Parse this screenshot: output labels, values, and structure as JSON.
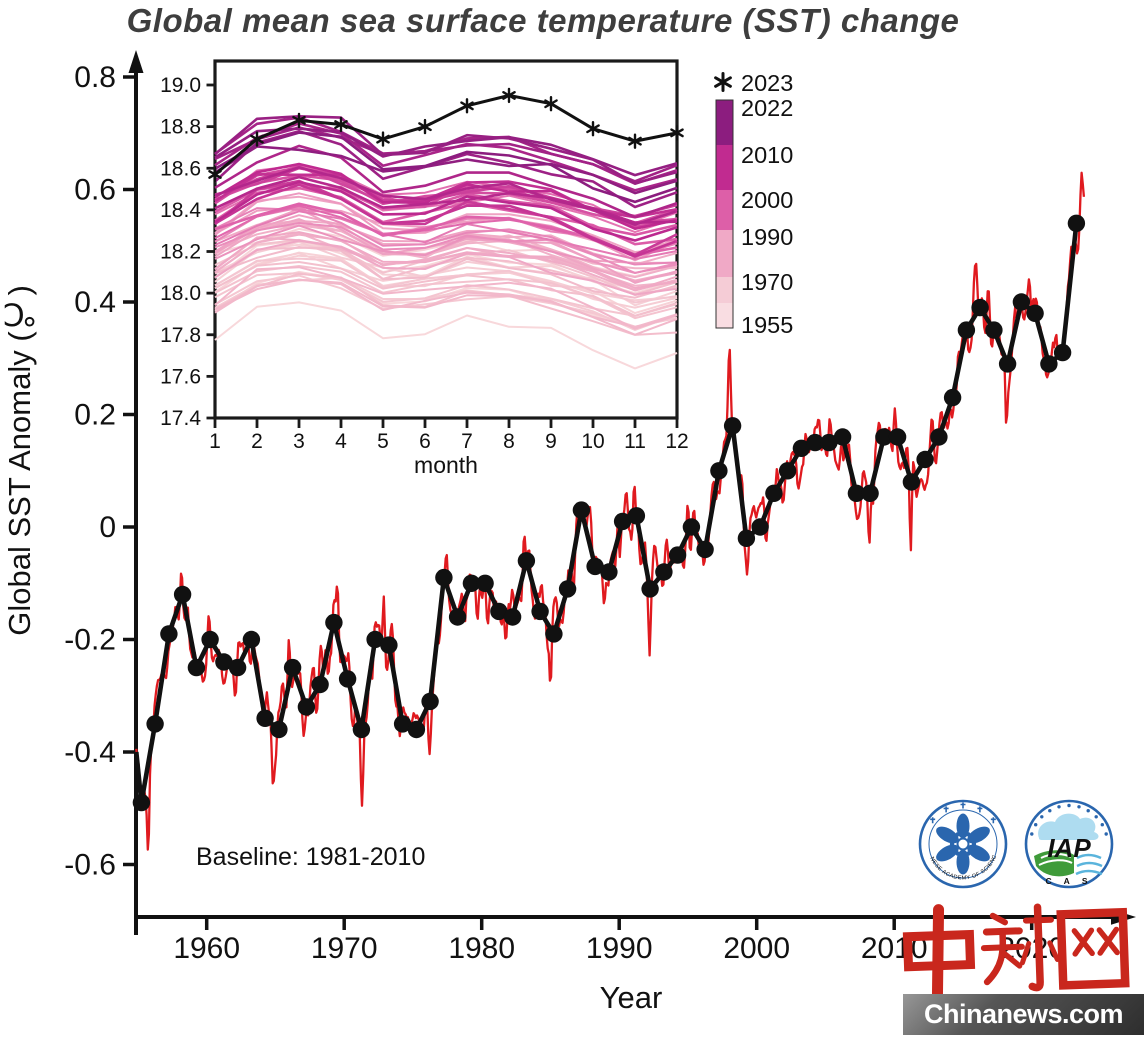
{
  "title": "Global mean sea surface temperature (SST) change",
  "axes": {
    "main": {
      "xlabel": "Year",
      "ylabel": "Global SST Anomaly (℃)"
    },
    "inset": {
      "xlabel": "month"
    }
  },
  "annotations": {
    "baseline": "Baseline: 1981-2010"
  },
  "legend": {
    "star_label": "2023",
    "colorbar_labels": [
      "2022",
      "2010",
      "2000",
      "1990",
      "1970",
      "1955"
    ],
    "colorbar_colors": [
      "#8c1d7f",
      "#c12b90",
      "#dd5fa8",
      "#f0a9c6",
      "#f5ccd6",
      "#f9dde2"
    ]
  },
  "logos": {
    "cas_text": "CHINESE ACADEMY OF SCIENCES",
    "iap_text": "IAP",
    "iap_sub": "C A S",
    "logo_blue": "#2a66ae"
  },
  "watermark": {
    "cn": "中新网",
    "site": "Chinanews.com",
    "red": "#c9271d"
  },
  "chart_data": [
    {
      "id": "main",
      "type": "line",
      "title": "Global mean sea surface temperature (SST) change",
      "xlabel": "Year",
      "ylabel": "Global SST Anomaly (℃)",
      "xlim": [
        1954.5,
        2026
      ],
      "ylim": [
        -0.7,
        0.85
      ],
      "x_ticks": [
        1960,
        1970,
        1980,
        1990,
        2000,
        2010,
        2020
      ],
      "y_ticks": [
        0.8,
        0.6,
        0.4,
        0.2,
        0,
        -0.2,
        -0.4,
        -0.6
      ],
      "grid": false,
      "annotation": "Baseline: 1981-2010",
      "series": [
        {
          "name": "annual-mean-SST-anomaly",
          "style": "thick black line with filled circle markers",
          "color": "#111111",
          "x_start": 1955,
          "x_end": 2023,
          "values": [
            -0.49,
            -0.35,
            -0.19,
            -0.12,
            -0.25,
            -0.2,
            -0.24,
            -0.25,
            -0.2,
            -0.34,
            -0.36,
            -0.25,
            -0.32,
            -0.28,
            -0.17,
            -0.27,
            -0.36,
            -0.2,
            -0.21,
            -0.35,
            -0.36,
            -0.31,
            -0.09,
            -0.16,
            -0.1,
            -0.1,
            -0.15,
            -0.16,
            -0.06,
            -0.15,
            -0.19,
            -0.11,
            0.03,
            -0.07,
            -0.08,
            0.01,
            0.02,
            -0.11,
            -0.08,
            -0.05,
            0.0,
            -0.04,
            0.1,
            0.18,
            -0.02,
            0.0,
            0.06,
            0.1,
            0.14,
            0.15,
            0.15,
            0.16,
            0.06,
            0.06,
            0.16,
            0.16,
            0.08,
            0.12,
            0.16,
            0.23,
            0.35,
            0.39,
            0.35,
            0.29,
            0.4,
            0.38,
            0.29,
            0.31,
            0.54
          ]
        },
        {
          "name": "monthly-SST-anomaly",
          "style": "thin red jagged line tracking the annual series",
          "color": "#e01a1f",
          "note": "monthly curve oscillates about the annual means; notable excursions: min -0.57 (1955), peak -0.07 (1958), peak 0.28 (early 1998), peak 0.47 (early 2016), record spike 0.67 (late 2023)",
          "peak_1998": 0.28,
          "peak_2016": 0.47,
          "peak_2023": 0.67
        }
      ]
    },
    {
      "id": "inset",
      "type": "line",
      "xlabel": "month",
      "x_ticks": [
        1,
        2,
        3,
        4,
        5,
        6,
        7,
        8,
        9,
        10,
        11,
        12
      ],
      "y_ticks": [
        17.4,
        17.6,
        17.8,
        18.0,
        18.2,
        18.4,
        18.6,
        18.8,
        19.0
      ],
      "ylim": [
        17.4,
        19.12
      ],
      "grid": false,
      "series_2023": {
        "name": "2023",
        "color": "#111111",
        "marker": "asterisk",
        "values": [
          18.57,
          18.74,
          18.83,
          18.81,
          18.74,
          18.8,
          18.9,
          18.95,
          18.91,
          18.79,
          18.73,
          18.77
        ]
      },
      "historical": {
        "note": "one line per year 1955-2022, colored light pink (oldest) to dark purple (newest); monthly value ≈ base + annual anomaly (main chart series) + seasonal offset",
        "year_start": 1955,
        "year_end": 2022,
        "base": 18.33,
        "seasonal_offsets": [
          -0.05,
          0.07,
          0.11,
          0.07,
          -0.04,
          -0.03,
          0.03,
          0.02,
          -0.02,
          -0.09,
          -0.16,
          -0.11
        ],
        "color_anchors": [
          [
            1955,
            "#f8d8db"
          ],
          [
            1970,
            "#f3c0cd"
          ],
          [
            1990,
            "#ee9fc2"
          ],
          [
            2000,
            "#df62ab"
          ],
          [
            2010,
            "#c02a90"
          ],
          [
            2022,
            "#8c1d7f"
          ]
        ]
      }
    }
  ]
}
